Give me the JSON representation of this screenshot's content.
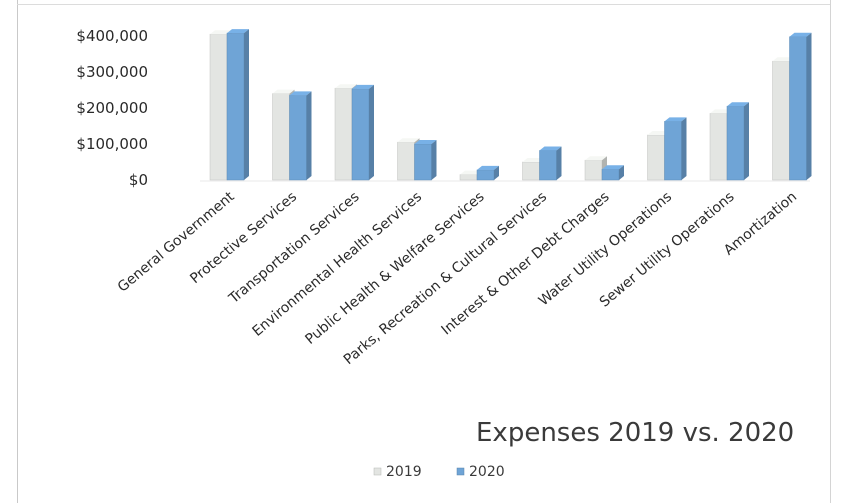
{
  "chart_data": {
    "type": "bar",
    "title": "Expenses 2019 vs. 2020",
    "xlabel": "",
    "ylabel": "",
    "ylim": [
      0,
      400000
    ],
    "yticks": [
      "$400,000",
      "$300,000",
      "$200,000",
      "$100,000",
      "$0"
    ],
    "categories": [
      "General Government",
      "Protective Services",
      "Transportation Services",
      "Environmental Health Services",
      "Public Health & Welfare Services",
      "Parks, Recreation & Cultural Services",
      "Interest & Other Debt Charges",
      "Water Utility Operations",
      "Sewer Utility Operations",
      "Amortization"
    ],
    "series": [
      {
        "name": "2019",
        "values": [
          405000,
          240000,
          255000,
          105000,
          15000,
          50000,
          55000,
          125000,
          185000,
          330000
        ]
      },
      {
        "name": "2020",
        "values": [
          408000,
          235000,
          253000,
          100000,
          28000,
          82000,
          30000,
          163000,
          205000,
          398000
        ]
      }
    ],
    "legend_position": "bottom",
    "grid": false,
    "colors": {
      "2019": "#e3e5e2",
      "2020": "#6fa4d6"
    },
    "style": "3d-clustered-column"
  }
}
